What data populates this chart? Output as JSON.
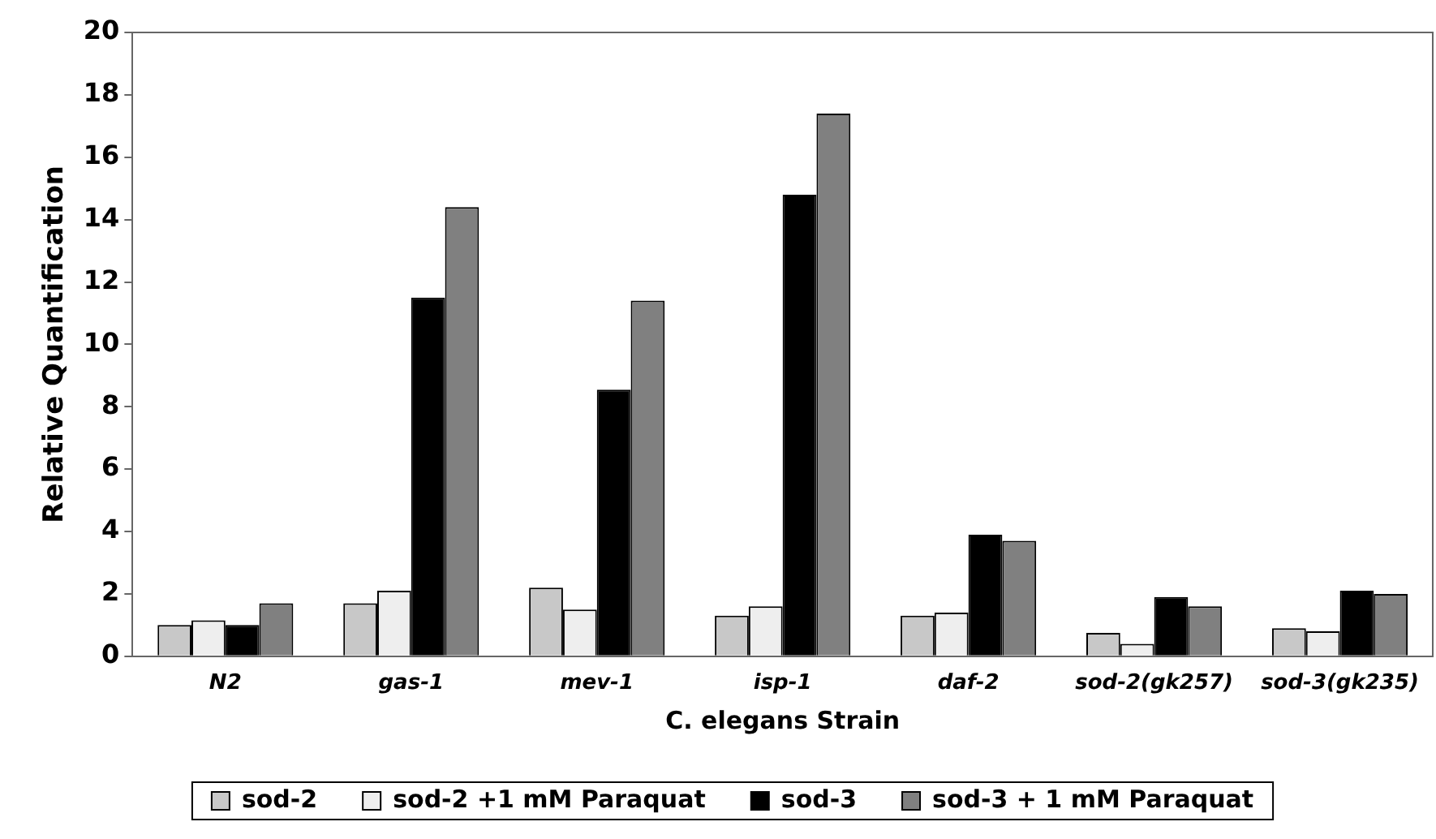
{
  "chart_data": {
    "type": "bar",
    "xlabel": "C. elegans Strain",
    "ylabel": "Relative Quantification",
    "categories": [
      "N2",
      "gas-1",
      "mev-1",
      "isp-1",
      "daf-2",
      "sod-2(gk257)",
      "sod-3(gk235)"
    ],
    "series": [
      {
        "name": "sod-2",
        "color": "#c8c8c8",
        "values": [
          1.0,
          1.7,
          2.2,
          1.3,
          1.3,
          0.75,
          0.9
        ]
      },
      {
        "name": "sod-2 +1 mM Paraquat",
        "color": "#eeeeee",
        "values": [
          1.15,
          2.1,
          1.5,
          1.6,
          1.4,
          0.4,
          0.8
        ]
      },
      {
        "name": "sod-3",
        "color": "#000000",
        "values": [
          1.0,
          11.5,
          8.55,
          14.8,
          3.9,
          1.9,
          2.1
        ]
      },
      {
        "name": "sod-3 + 1 mM Paraquat",
        "color": "#808080",
        "values": [
          1.7,
          14.4,
          11.4,
          17.4,
          3.7,
          1.6,
          2.0
        ]
      }
    ],
    "ylim": [
      0,
      20
    ],
    "yticks": [
      0,
      2,
      4,
      6,
      8,
      10,
      12,
      14,
      16,
      18,
      20
    ],
    "grid": false,
    "legend": "bottom"
  }
}
